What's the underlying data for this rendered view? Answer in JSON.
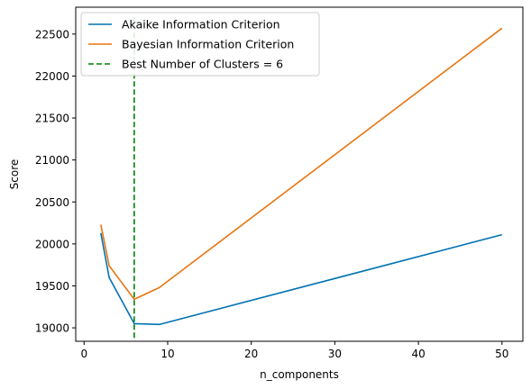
{
  "chart_data": {
    "type": "line",
    "xlabel": "n_components",
    "ylabel": "Score",
    "xlim": [
      -1,
      52.5
    ],
    "ylim": [
      18840,
      22820
    ],
    "xticks": [
      0,
      10,
      20,
      30,
      40,
      50
    ],
    "yticks": [
      19000,
      19500,
      20000,
      20500,
      21000,
      21500,
      22000,
      22500
    ],
    "grid": false,
    "legend_position": "top-left",
    "series": [
      {
        "name": "Akaike Information Criterion",
        "color": "#0072b2",
        "style": "solid",
        "x": [
          2,
          3,
          6,
          9,
          50
        ],
        "y": [
          20130,
          19600,
          19050,
          19040,
          20110
        ]
      },
      {
        "name": "Bayesian Information Criterion",
        "color": "#e8750f",
        "style": "solid",
        "x": [
          2,
          3,
          6,
          9,
          50
        ],
        "y": [
          20230,
          19740,
          19340,
          19480,
          22570
        ]
      }
    ],
    "vline": {
      "name": "Best Number of Clusters = 6",
      "color": "#008000",
      "style": "dashed",
      "x": 6,
      "y_from": 18880,
      "y_to": 22700
    }
  }
}
